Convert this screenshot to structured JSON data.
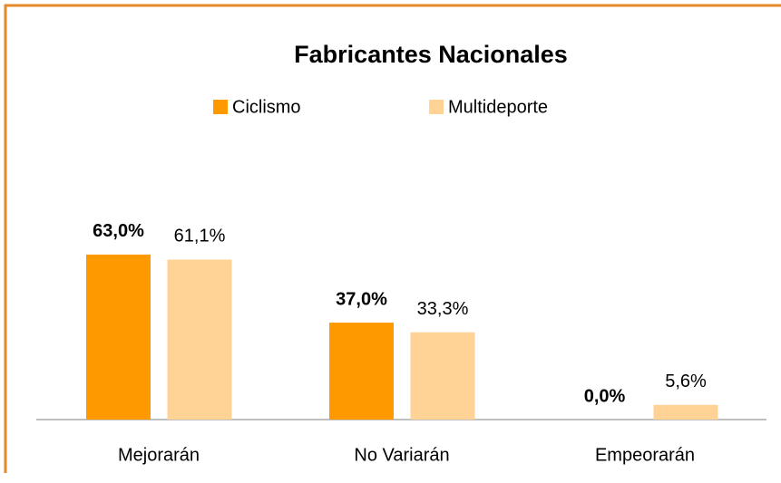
{
  "chart_data": {
    "type": "bar",
    "title": "Fabricantes Nacionales",
    "categories": [
      "Mejorarán",
      "No Variarán",
      "Empeorarán"
    ],
    "series": [
      {
        "name": "Ciclismo",
        "color": "#ff9900",
        "values": [
          63.0,
          37.0,
          0.0
        ],
        "value_labels": [
          "63,0%",
          "37,0%",
          "0,0%"
        ]
      },
      {
        "name": "Multideporte",
        "color": "#ffd395",
        "values": [
          61.1,
          33.3,
          5.6
        ],
        "value_labels": [
          "61,1%",
          "33,3%",
          "5,6%"
        ]
      }
    ],
    "legend": "top"
  }
}
